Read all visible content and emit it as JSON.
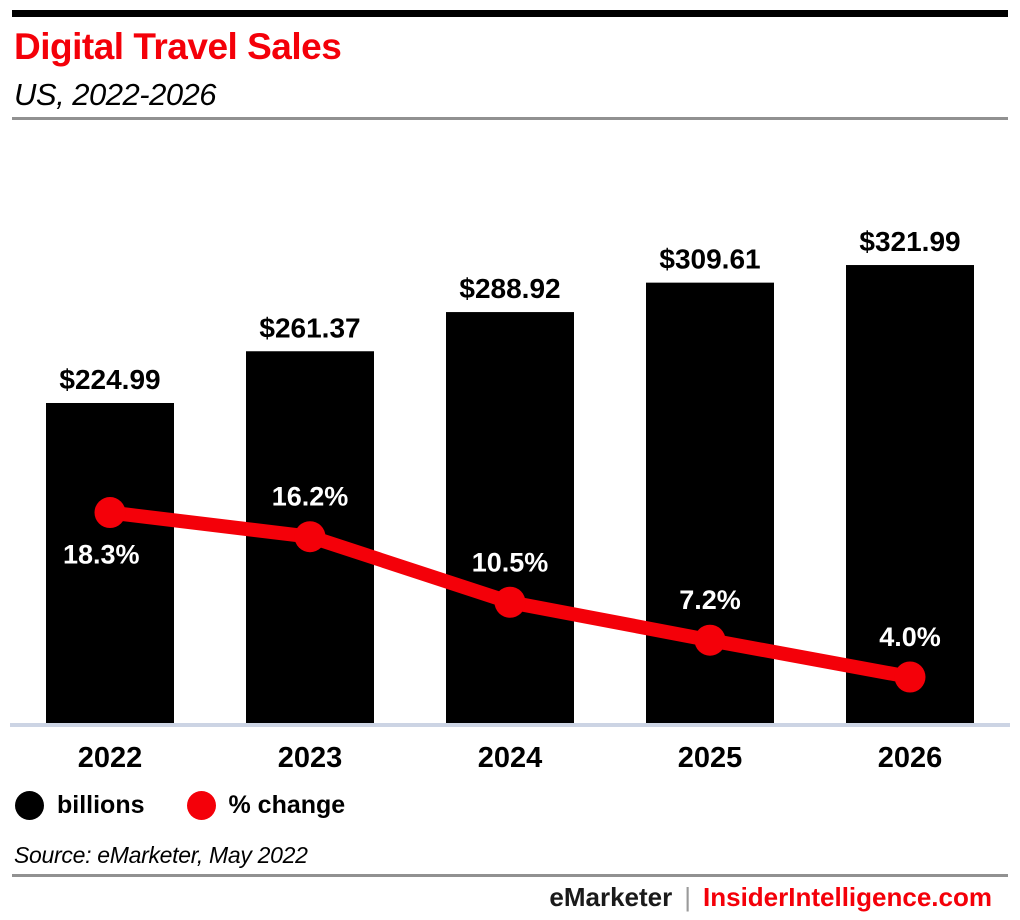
{
  "header": {
    "title": "Digital Travel Sales",
    "subtitle": "US, 2022-2026"
  },
  "chart_data": {
    "type": "bar",
    "title": "Digital Travel Sales",
    "subtitle": "US, 2022-2026",
    "categories": [
      "2022",
      "2023",
      "2024",
      "2025",
      "2026"
    ],
    "series": [
      {
        "name": "billions",
        "type": "bar",
        "color": "#000000",
        "values": [
          224.99,
          261.37,
          288.92,
          309.61,
          321.99
        ],
        "labels": [
          "$224.99",
          "$261.37",
          "$288.92",
          "$309.61",
          "$321.99"
        ]
      },
      {
        "name": "% change",
        "type": "line",
        "color": "#f40009",
        "values": [
          18.3,
          16.2,
          10.5,
          7.2,
          4.0
        ],
        "labels": [
          "18.3%",
          "16.2%",
          "10.5%",
          "7.2%",
          "4.0%"
        ],
        "label_positions": [
          "below",
          "above",
          "above",
          "above",
          "above"
        ]
      }
    ],
    "xlabel": "",
    "ylabel": "",
    "bar_axis_range": [
      0,
      350
    ],
    "pct_axis_range": [
      0,
      50
    ],
    "grid": false,
    "legend_position": "bottom"
  },
  "legend": {
    "items": [
      {
        "label": "billions",
        "color": "#000000"
      },
      {
        "label": "% change",
        "color": "#f40009"
      }
    ]
  },
  "footer": {
    "source": "Source: eMarketer, May 2022",
    "brand_left": "eMarketer",
    "brand_separator": "|",
    "brand_right": "InsiderIntelligence.com"
  },
  "colors": {
    "accent_red": "#f40009",
    "bar_black": "#000000",
    "axis_line": "#ccd4e4",
    "divider_gray": "#919191",
    "pct_label_white": "#ffffff"
  }
}
